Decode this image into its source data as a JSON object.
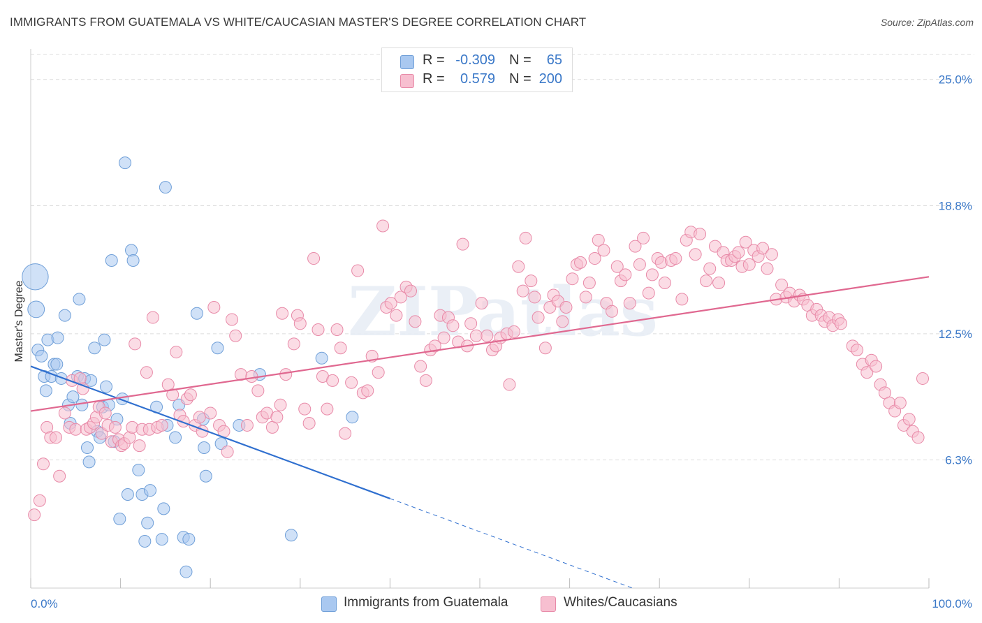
{
  "header": {
    "title": "IMMIGRANTS FROM GUATEMALA VS WHITE/CAUCASIAN MASTER'S DEGREE CORRELATION CHART",
    "source": "Source: ZipAtlas.com"
  },
  "legend": {
    "rows": [
      {
        "r_label": "R =",
        "r_value": "-0.309",
        "n_label": "N =",
        "n_value": "65"
      },
      {
        "r_label": "R =",
        "r_value": "0.579",
        "n_label": "N =",
        "n_value": "200"
      }
    ]
  },
  "bottom_legend": {
    "items": [
      {
        "label": "Immigrants from Guatemala"
      },
      {
        "label": "Whites/Caucasians"
      }
    ]
  },
  "colors": {
    "blue_fill": "#a9c8f0",
    "blue_stroke": "#6f9fd8",
    "blue_line": "#2f6fcf",
    "pink_fill": "#f7bfd0",
    "pink_stroke": "#e88aa8",
    "pink_line": "#e06890",
    "grid": "#dcdcdc",
    "tick_label": "#3a78c8"
  },
  "chart_data": {
    "type": "scatter",
    "title": "IMMIGRANTS FROM GUATEMALA VS WHITE/CAUCASIAN MASTER'S DEGREE CORRELATION CHART",
    "xlabel": "",
    "ylabel": "Master's Degree",
    "xlim": [
      0,
      100
    ],
    "ylim": [
      0,
      26.5
    ],
    "x_tick_labels": [
      "0.0%",
      "100.0%"
    ],
    "y_ticks": [
      6.3,
      12.5,
      18.8,
      25.0
    ],
    "y_tick_labels": [
      "6.3%",
      "12.5%",
      "18.8%",
      "25.0%"
    ],
    "grid": true,
    "watermark": "ZIPatlas",
    "series": [
      {
        "name": "Immigrants from Guatemala",
        "color": "#a9c8f0",
        "trend": {
          "x": [
            0,
            40
          ],
          "y": [
            10.9,
            4.4
          ],
          "dashed_to": [
            67,
            0
          ]
        },
        "points": [
          [
            0.5,
            15.3,
            2.2
          ],
          [
            0.6,
            13.7,
            1.4
          ],
          [
            0.8,
            11.7,
            1
          ],
          [
            1.2,
            11.4,
            1
          ],
          [
            1.5,
            10.4,
            1
          ],
          [
            1.7,
            9.7,
            1
          ],
          [
            1.9,
            12.2,
            1
          ],
          [
            2.3,
            10.4,
            1
          ],
          [
            2.6,
            11.0,
            1
          ],
          [
            3.0,
            12.3,
            1
          ],
          [
            2.9,
            11.0,
            1
          ],
          [
            3.4,
            10.3,
            1
          ],
          [
            3.8,
            13.4,
            1
          ],
          [
            4.2,
            9.0,
            1
          ],
          [
            4.4,
            8.1,
            1
          ],
          [
            4.7,
            9.4,
            1
          ],
          [
            5.2,
            10.4,
            1
          ],
          [
            5.4,
            14.2,
            1
          ],
          [
            5.7,
            9.0,
            1
          ],
          [
            6.0,
            10.3,
            1
          ],
          [
            6.3,
            6.9,
            1
          ],
          [
            6.5,
            6.2,
            1
          ],
          [
            6.7,
            10.2,
            1
          ],
          [
            7.1,
            11.8,
            1
          ],
          [
            7.4,
            7.7,
            1
          ],
          [
            7.7,
            7.4,
            1
          ],
          [
            8.0,
            8.9,
            1
          ],
          [
            8.2,
            12.2,
            1
          ],
          [
            8.4,
            9.9,
            1
          ],
          [
            8.7,
            9.0,
            1
          ],
          [
            9.0,
            16.1,
            1
          ],
          [
            9.3,
            7.2,
            1
          ],
          [
            9.6,
            8.3,
            1
          ],
          [
            9.9,
            3.4,
            1
          ],
          [
            10.2,
            9.3,
            1
          ],
          [
            10.5,
            20.9,
            1
          ],
          [
            10.8,
            4.6,
            1
          ],
          [
            11.2,
            16.6,
            1
          ],
          [
            11.4,
            16.1,
            1
          ],
          [
            12.0,
            5.8,
            1
          ],
          [
            12.4,
            4.6,
            1
          ],
          [
            12.7,
            2.3,
            1
          ],
          [
            13.0,
            3.2,
            1
          ],
          [
            13.3,
            4.8,
            1
          ],
          [
            14.0,
            8.9,
            1
          ],
          [
            14.6,
            2.4,
            1
          ],
          [
            14.8,
            3.9,
            1
          ],
          [
            15.2,
            8.0,
            1
          ],
          [
            15.0,
            19.7,
            1
          ],
          [
            16.1,
            7.4,
            1
          ],
          [
            16.5,
            9.0,
            1
          ],
          [
            17.0,
            2.5,
            1
          ],
          [
            17.3,
            0.8,
            1
          ],
          [
            17.6,
            2.4,
            1
          ],
          [
            18.5,
            13.5,
            1
          ],
          [
            19.3,
            6.9,
            1
          ],
          [
            19.2,
            8.3,
            1
          ],
          [
            19.5,
            5.5,
            1
          ],
          [
            20.8,
            11.8,
            1
          ],
          [
            21.2,
            7.1,
            1
          ],
          [
            23.2,
            8.0,
            1
          ],
          [
            25.5,
            10.5,
            1
          ],
          [
            29.0,
            2.6,
            1
          ],
          [
            32.4,
            11.3,
            1
          ],
          [
            35.8,
            8.4,
            1
          ]
        ]
      },
      {
        "name": "Whites/Caucasians",
        "color": "#f7bfd0",
        "trend": {
          "x": [
            0,
            100
          ],
          "y": [
            8.7,
            15.3
          ]
        },
        "points": [
          [
            0.4,
            3.6
          ],
          [
            1.0,
            4.3
          ],
          [
            1.4,
            6.1
          ],
          [
            1.8,
            7.9
          ],
          [
            2.2,
            7.4
          ],
          [
            2.8,
            7.4
          ],
          [
            3.2,
            5.5
          ],
          [
            3.8,
            8.6
          ],
          [
            4.3,
            7.9
          ],
          [
            4.6,
            10.2
          ],
          [
            5.0,
            7.8
          ],
          [
            5.5,
            10.3
          ],
          [
            5.8,
            9.8
          ],
          [
            6.2,
            7.8
          ],
          [
            6.6,
            7.9
          ],
          [
            7.0,
            8.1
          ],
          [
            7.3,
            8.4
          ],
          [
            7.6,
            8.9
          ],
          [
            7.9,
            7.6
          ],
          [
            8.3,
            8.6
          ],
          [
            8.6,
            8.0
          ],
          [
            9.0,
            7.2
          ],
          [
            9.4,
            7.9
          ],
          [
            9.8,
            7.3
          ],
          [
            10.1,
            7.0
          ],
          [
            10.4,
            7.1
          ],
          [
            11.0,
            7.4
          ],
          [
            11.3,
            7.9
          ],
          [
            11.6,
            12.0
          ],
          [
            12.1,
            7.0
          ],
          [
            12.4,
            7.8
          ],
          [
            12.9,
            10.6
          ],
          [
            13.2,
            7.8
          ],
          [
            13.6,
            13.3
          ],
          [
            14.1,
            7.9
          ],
          [
            14.6,
            8.0
          ],
          [
            15.3,
            10.0
          ],
          [
            15.8,
            9.5
          ],
          [
            16.2,
            11.6
          ],
          [
            16.6,
            8.5
          ],
          [
            17.0,
            8.2
          ],
          [
            17.4,
            9.3
          ],
          [
            17.8,
            9.5
          ],
          [
            18.3,
            8.0
          ],
          [
            18.8,
            8.4
          ],
          [
            19.1,
            7.7
          ],
          [
            20.0,
            8.6
          ],
          [
            20.4,
            13.8
          ],
          [
            21.0,
            8.0
          ],
          [
            21.5,
            7.7
          ],
          [
            21.9,
            6.7
          ],
          [
            22.4,
            13.2
          ],
          [
            22.8,
            12.4
          ],
          [
            23.4,
            10.5
          ],
          [
            24.1,
            8.0
          ],
          [
            24.6,
            10.4
          ],
          [
            25.3,
            9.7
          ],
          [
            25.8,
            8.4
          ],
          [
            26.3,
            8.6
          ],
          [
            26.9,
            7.9
          ],
          [
            27.4,
            8.4
          ],
          [
            27.8,
            9.0
          ],
          [
            28.0,
            13.5
          ],
          [
            28.4,
            10.5
          ],
          [
            29.3,
            12.0
          ],
          [
            29.7,
            13.4
          ],
          [
            30.0,
            13.0
          ],
          [
            30.5,
            8.8
          ],
          [
            31.0,
            8.1
          ],
          [
            31.5,
            16.2
          ],
          [
            32.0,
            12.7
          ],
          [
            32.5,
            10.4
          ],
          [
            33.0,
            8.8
          ],
          [
            33.6,
            10.2
          ],
          [
            34.1,
            12.7
          ],
          [
            34.5,
            11.8
          ],
          [
            35.0,
            7.6
          ],
          [
            35.7,
            10.1
          ],
          [
            36.4,
            15.6
          ],
          [
            37.0,
            9.6
          ],
          [
            37.5,
            9.7
          ],
          [
            38.0,
            11.4
          ],
          [
            38.7,
            10.6
          ],
          [
            39.2,
            17.8
          ],
          [
            39.6,
            13.8
          ],
          [
            40.1,
            14.0
          ],
          [
            40.7,
            13.4
          ],
          [
            41.2,
            14.3
          ],
          [
            41.8,
            14.8
          ],
          [
            42.3,
            14.6
          ],
          [
            42.8,
            13.1
          ],
          [
            43.4,
            10.9
          ],
          [
            44.0,
            10.2
          ],
          [
            44.5,
            11.7
          ],
          [
            45.0,
            11.9
          ],
          [
            45.6,
            13.4
          ],
          [
            46.0,
            12.3
          ],
          [
            46.5,
            13.3
          ],
          [
            47.0,
            12.9
          ],
          [
            47.6,
            12.1
          ],
          [
            48.1,
            16.9
          ],
          [
            48.6,
            11.9
          ],
          [
            49.0,
            13.0
          ],
          [
            49.6,
            12.4
          ],
          [
            50.2,
            14.0
          ],
          [
            50.8,
            12.4
          ],
          [
            51.4,
            11.7
          ],
          [
            51.8,
            11.9
          ],
          [
            52.3,
            12.3
          ],
          [
            53.0,
            12.5
          ],
          [
            53.3,
            10.0
          ],
          [
            53.8,
            12.6
          ],
          [
            54.3,
            15.8
          ],
          [
            54.8,
            14.6
          ],
          [
            55.1,
            17.2
          ],
          [
            55.7,
            15.1
          ],
          [
            56.1,
            14.3
          ],
          [
            56.5,
            13.3
          ],
          [
            57.3,
            11.8
          ],
          [
            57.8,
            13.8
          ],
          [
            58.2,
            14.4
          ],
          [
            58.7,
            14.1
          ],
          [
            59.2,
            13.1
          ],
          [
            59.6,
            13.8
          ],
          [
            60.3,
            15.2
          ],
          [
            60.8,
            15.9
          ],
          [
            61.2,
            16.0
          ],
          [
            61.8,
            14.3
          ],
          [
            62.2,
            15.0
          ],
          [
            62.8,
            16.2
          ],
          [
            63.2,
            17.1
          ],
          [
            63.8,
            16.6
          ],
          [
            64.1,
            14.0
          ],
          [
            64.7,
            13.6
          ],
          [
            65.3,
            15.8
          ],
          [
            65.7,
            15.1
          ],
          [
            66.2,
            15.4
          ],
          [
            66.7,
            14.0
          ],
          [
            67.3,
            16.8
          ],
          [
            67.8,
            15.9
          ],
          [
            68.2,
            17.2
          ],
          [
            68.8,
            14.5
          ],
          [
            69.2,
            15.4
          ],
          [
            69.8,
            16.2
          ],
          [
            70.2,
            16.0
          ],
          [
            70.6,
            15.0
          ],
          [
            71.3,
            16.1
          ],
          [
            71.8,
            16.2
          ],
          [
            72.5,
            14.2
          ],
          [
            73.0,
            17.1
          ],
          [
            73.5,
            17.5
          ],
          [
            74.0,
            16.4
          ],
          [
            74.5,
            17.4
          ],
          [
            75.2,
            15.1
          ],
          [
            75.6,
            15.7
          ],
          [
            76.2,
            16.8
          ],
          [
            76.6,
            15.0
          ],
          [
            77.1,
            16.5
          ],
          [
            77.5,
            16.1
          ],
          [
            78.0,
            16.1
          ],
          [
            78.4,
            16.3
          ],
          [
            78.8,
            16.5
          ],
          [
            79.2,
            15.8
          ],
          [
            79.6,
            17.0
          ],
          [
            80.0,
            15.9
          ],
          [
            80.5,
            16.6
          ],
          [
            81.0,
            16.3
          ],
          [
            81.5,
            16.7
          ],
          [
            82.0,
            15.7
          ],
          [
            82.5,
            16.4
          ],
          [
            83.0,
            14.2
          ],
          [
            83.6,
            14.9
          ],
          [
            84.1,
            14.3
          ],
          [
            84.5,
            14.5
          ],
          [
            85.0,
            14.1
          ],
          [
            85.6,
            14.4
          ],
          [
            86.0,
            14.2
          ],
          [
            86.5,
            13.9
          ],
          [
            87.0,
            13.4
          ],
          [
            87.5,
            13.7
          ],
          [
            88.0,
            13.4
          ],
          [
            88.4,
            13.1
          ],
          [
            88.9,
            13.3
          ],
          [
            89.3,
            12.9
          ],
          [
            89.9,
            13.2
          ],
          [
            90.2,
            13.0
          ],
          [
            91.5,
            11.9
          ],
          [
            92.0,
            11.7
          ],
          [
            92.6,
            11.0
          ],
          [
            93.1,
            10.6
          ],
          [
            93.6,
            11.2
          ],
          [
            94.1,
            10.9
          ],
          [
            94.6,
            10.0
          ],
          [
            95.1,
            9.6
          ],
          [
            95.6,
            9.1
          ],
          [
            96.2,
            8.7
          ],
          [
            96.8,
            9.1
          ],
          [
            97.2,
            8.0
          ],
          [
            97.8,
            8.3
          ],
          [
            98.2,
            7.7
          ],
          [
            98.8,
            7.4
          ],
          [
            99.3,
            10.3
          ]
        ]
      }
    ]
  }
}
